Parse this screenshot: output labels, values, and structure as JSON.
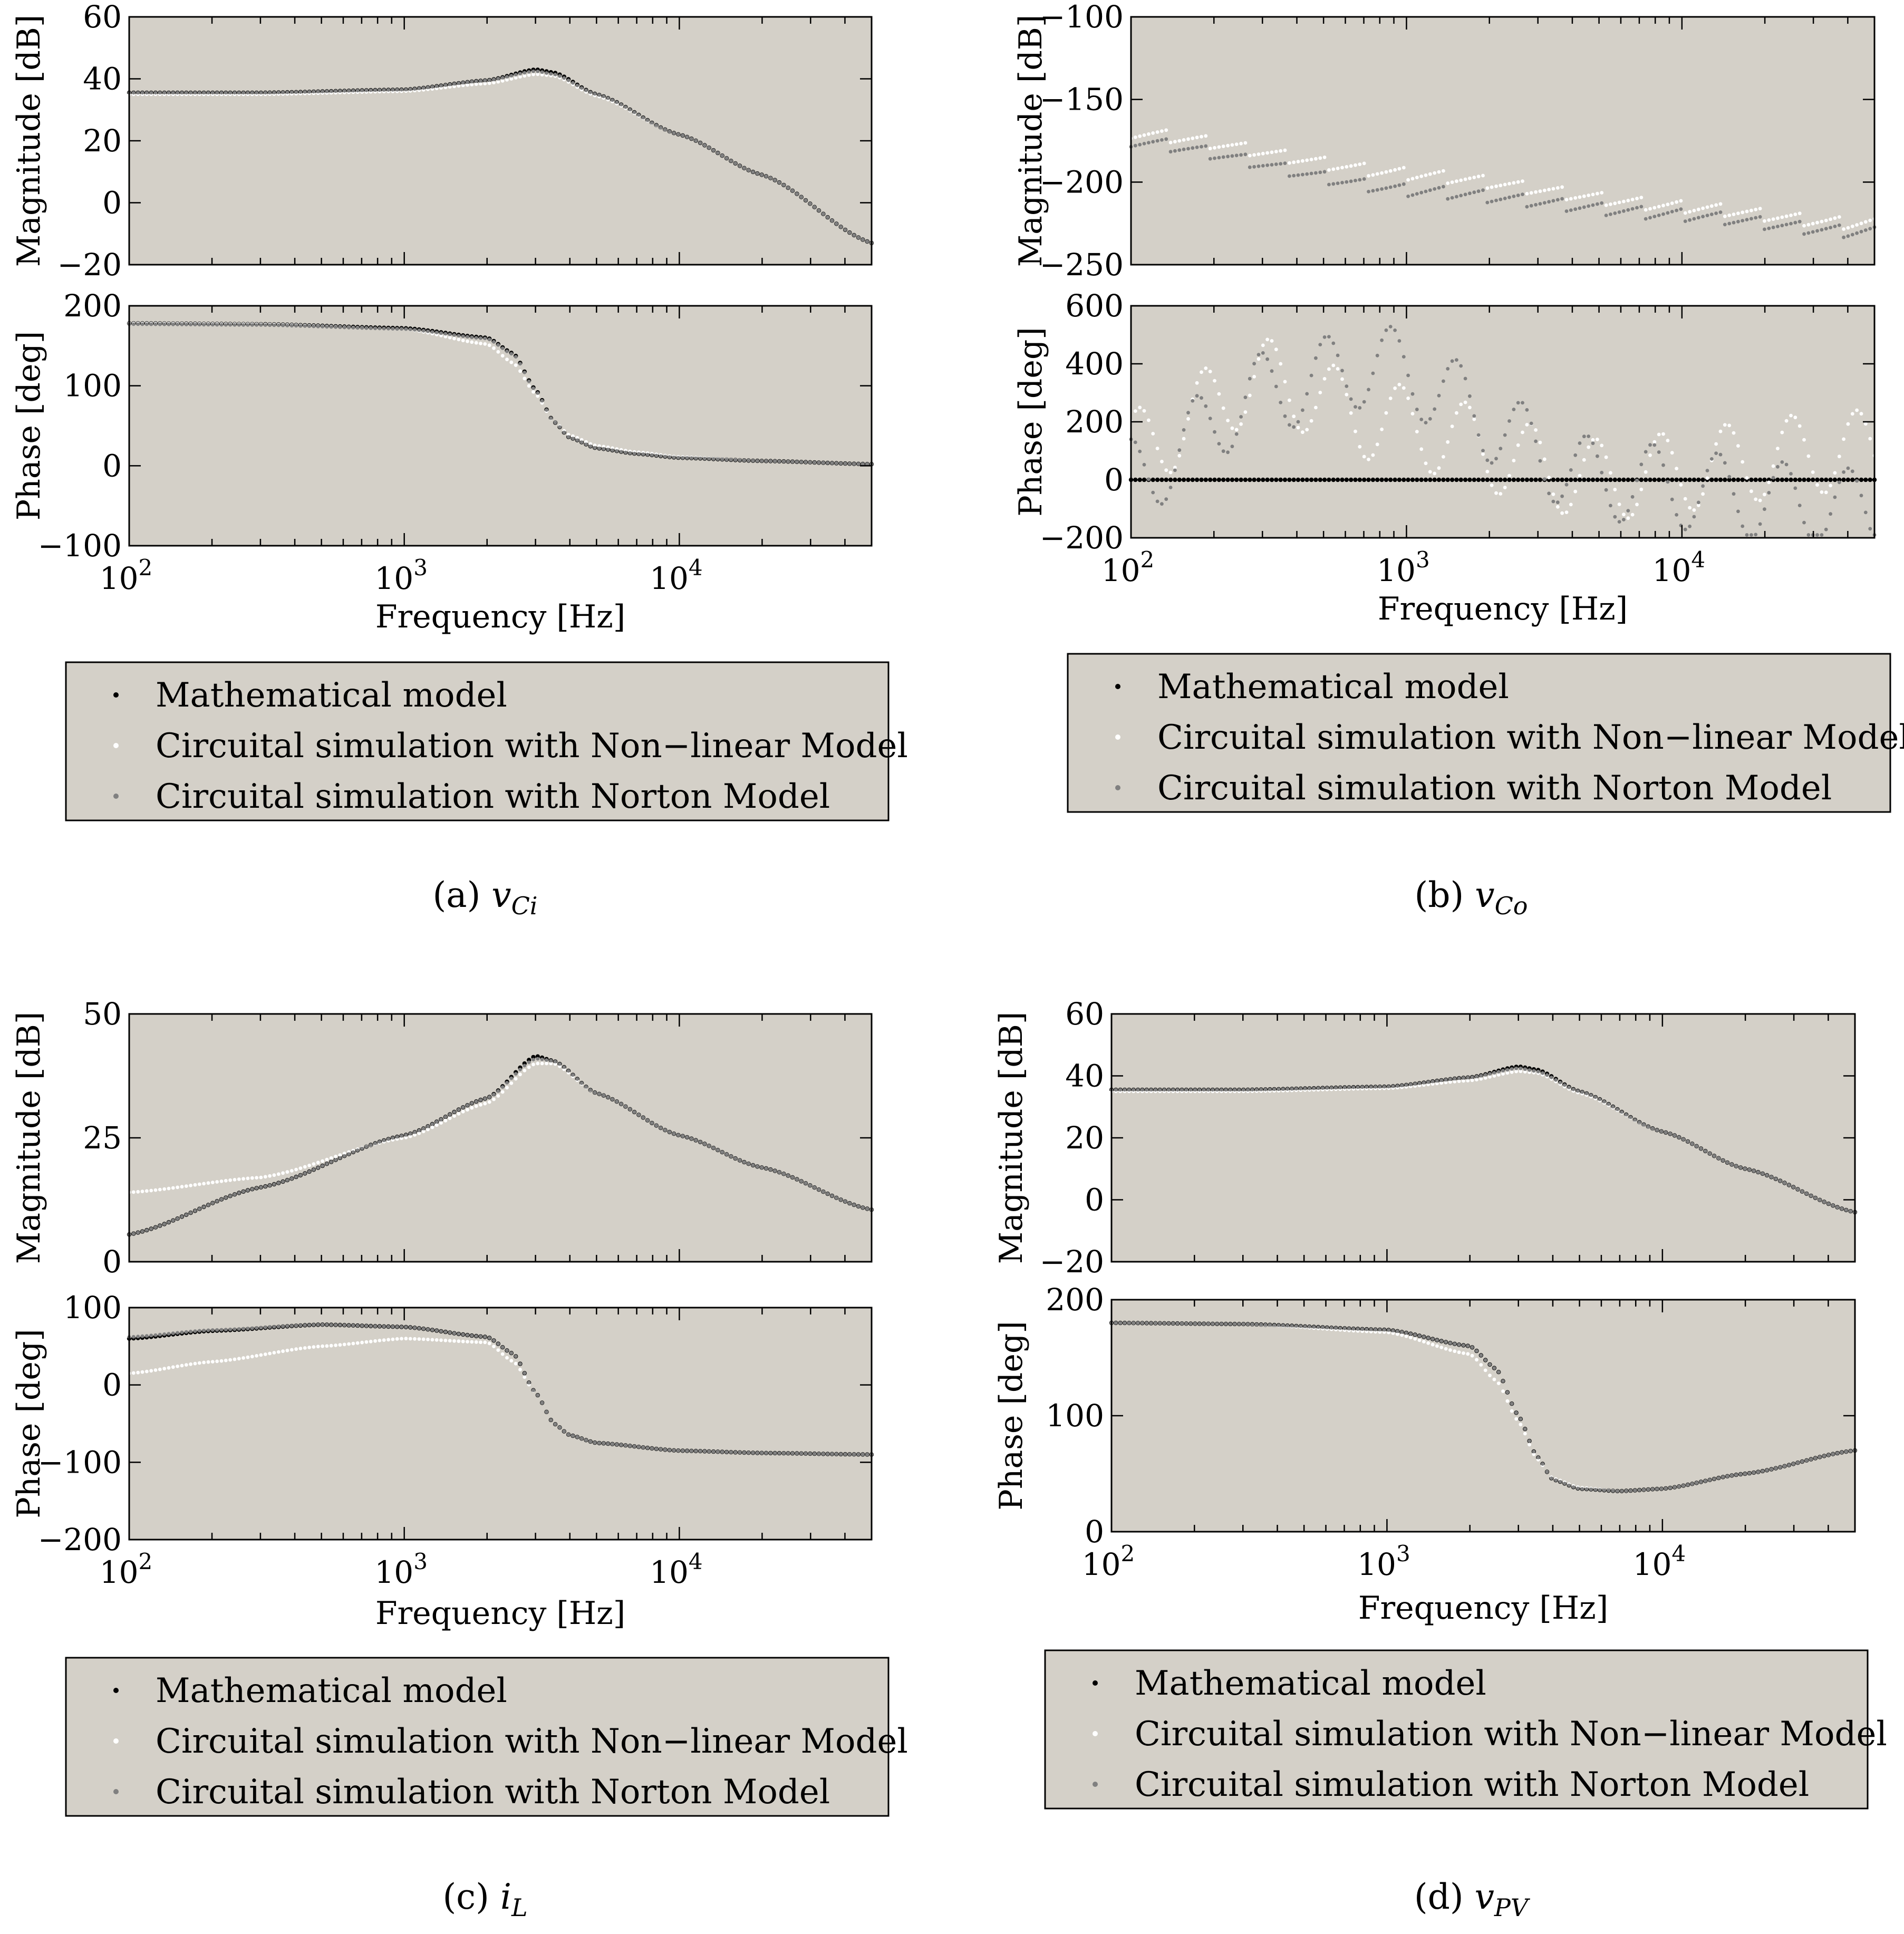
{
  "figure": {
    "background_color": "#d4d0c8",
    "colors": {
      "Mathematical model": "#000000",
      "Circuital simulation with Non−linear Model": "#ffffff",
      "Circuital simulation with Norton Model": "#808080"
    },
    "legend_entries": [
      "Mathematical model",
      "Circuital simulation with Non−linear Model",
      "Circuital simulation with Norton Model"
    ]
  },
  "chart_data": [
    {
      "id": "a",
      "caption_prefix": "(a)",
      "caption_var": "v",
      "caption_sub": "Ci",
      "magnitude": {
        "type": "scatter",
        "xscale": "log",
        "xlim": [
          100,
          50000
        ],
        "ylim": [
          -20,
          60
        ],
        "yticks": [
          "60",
          "40",
          "20",
          "0",
          "−20"
        ],
        "ylabel": "Magnitude [dB]",
        "series": [
          {
            "name": "Mathematical model",
            "x": [
              100,
              300,
              1000,
              2000,
              3000,
              3500,
              5000,
              10000,
              20000,
              50000
            ],
            "y": [
              35.5,
              35.5,
              36.5,
              39.5,
              43,
              42,
              35,
              22,
              9,
              -13
            ]
          },
          {
            "name": "Circuital simulation with Non−linear Model",
            "x": [
              100,
              300,
              1000,
              2000,
              3000,
              3500,
              5000,
              10000,
              20000,
              50000
            ],
            "y": [
              35,
              35,
              36,
              38.5,
              41.5,
              41,
              34.5,
              22,
              9,
              -13
            ]
          },
          {
            "name": "Circuital simulation with Norton Model",
            "x": [
              100,
              300,
              1000,
              2000,
              3000,
              3500,
              5000,
              10000,
              20000,
              50000
            ],
            "y": [
              35.5,
              35.5,
              36.5,
              39.5,
              42.5,
              41.5,
              35,
              22,
              9,
              -13
            ]
          }
        ]
      },
      "phase": {
        "type": "scatter",
        "xscale": "log",
        "xlim": [
          100,
          50000
        ],
        "ylim": [
          -100,
          200
        ],
        "yticks": [
          "200",
          "100",
          "0",
          "−100"
        ],
        "ylabel": "Phase [deg]",
        "xticks": [
          "10",
          "10",
          "10"
        ],
        "xtick_exponents": [
          "2",
          "3",
          "4"
        ],
        "xlabel": "Frequency [Hz]",
        "series": [
          {
            "name": "Mathematical model",
            "x": [
              100,
              300,
              1000,
              2000,
              2500,
              3000,
              3500,
              4000,
              5000,
              7000,
              10000,
              20000,
              50000
            ],
            "y": [
              178,
              177,
              172,
              160,
              140,
              95,
              55,
              35,
              22,
              15,
              10,
              6,
              2
            ]
          },
          {
            "name": "Circuital simulation with Non−linear Model",
            "x": [
              100,
              300,
              1000,
              2000,
              2500,
              3000,
              3500,
              4000,
              5000,
              7000,
              10000,
              20000,
              50000
            ],
            "y": [
              178,
              177,
              171,
              152,
              128,
              90,
              55,
              38,
              25,
              17,
              11,
              6,
              2
            ]
          },
          {
            "name": "Circuital simulation with Norton Model",
            "x": [
              100,
              300,
              1000,
              2000,
              2500,
              3000,
              3500,
              4000,
              5000,
              7000,
              10000,
              20000,
              50000
            ],
            "y": [
              177,
              176,
              171,
              159,
              139,
              94,
              55,
              35,
              22,
              15,
              10,
              6,
              2
            ]
          }
        ]
      }
    },
    {
      "id": "b",
      "caption_prefix": "(b)",
      "caption_var": "v",
      "caption_sub": "Co",
      "magnitude": {
        "type": "scatter",
        "xscale": "log",
        "xlim": [
          100,
          50000
        ],
        "ylim": [
          -250,
          -100
        ],
        "yticks": [
          "−100",
          "−150",
          "−200",
          "−250"
        ],
        "ylabel": "Magnitude [dB]",
        "series": [
          {
            "name": "Circuital simulation with Non−linear Model",
            "x": [
              100,
              1000,
              10000,
              40000
            ],
            "y": [
              -170,
              -195,
              -215,
              -225
            ]
          },
          {
            "name": "Circuital simulation with Norton Model",
            "x": [
              100,
              1000,
              10000,
              40000
            ],
            "y": [
              -175,
              -205,
              -220,
              -230
            ]
          }
        ]
      },
      "phase": {
        "type": "scatter",
        "xscale": "log",
        "xlim": [
          100,
          50000
        ],
        "ylim": [
          -200,
          600
        ],
        "yticks": [
          "600",
          "400",
          "200",
          "0",
          "−200"
        ],
        "ylabel": "Phase [deg]",
        "xticks": [
          "10",
          "10",
          "10"
        ],
        "xtick_exponents": [
          "2",
          "3",
          "4"
        ],
        "xlabel": "Frequency [Hz]",
        "series": [
          {
            "name": "Mathematical model",
            "x": [
              100,
              50000
            ],
            "y": [
              0,
              0
            ]
          },
          {
            "name": "Circuital simulation with Non−linear Model",
            "x": [
              100,
              300,
              800,
              5000,
              40000
            ],
            "y": [
              100,
              350,
              200,
              0,
              100
            ]
          },
          {
            "name": "Circuital simulation with Norton Model",
            "x": [
              100,
              300,
              800,
              5000,
              40000
            ],
            "y": [
              0,
              300,
              400,
              0,
              -100
            ]
          }
        ]
      }
    },
    {
      "id": "c",
      "caption_prefix": "(c)",
      "caption_var": "i",
      "caption_sub": "L",
      "magnitude": {
        "type": "scatter",
        "xscale": "log",
        "xlim": [
          100,
          50000
        ],
        "ylim": [
          0,
          50
        ],
        "yticks": [
          "50",
          "25",
          "0"
        ],
        "ylabel": "Magnitude [dB]",
        "series": [
          {
            "name": "Mathematical model",
            "x": [
              100,
              300,
              1000,
              2000,
              3000,
              3500,
              5000,
              10000,
              20000,
              50000
            ],
            "y": [
              5.5,
              15,
              25.5,
              33,
              41.5,
              40.5,
              34,
              25.5,
              19,
              10.5
            ]
          },
          {
            "name": "Circuital simulation with Non−linear Model",
            "x": [
              100,
              300,
              1000,
              2000,
              3000,
              3500,
              5000,
              10000,
              20000,
              50000
            ],
            "y": [
              14,
              17,
              25,
              32,
              40,
              40,
              34,
              25.5,
              19,
              10.5
            ]
          },
          {
            "name": "Circuital simulation with Norton Model",
            "x": [
              100,
              300,
              1000,
              2000,
              3000,
              3500,
              5000,
              10000,
              20000,
              50000
            ],
            "y": [
              5.5,
              15,
              25.5,
              33,
              41,
              40.5,
              34,
              25.5,
              19,
              10.5
            ]
          }
        ]
      },
      "phase": {
        "type": "scatter",
        "xscale": "log",
        "xlim": [
          100,
          50000
        ],
        "ylim": [
          -200,
          100
        ],
        "yticks": [
          "100",
          "0",
          "−100",
          "−200"
        ],
        "ylabel": "Phase [deg]",
        "xticks": [
          "10",
          "10",
          "10"
        ],
        "xtick_exponents": [
          "2",
          "3",
          "4"
        ],
        "xlabel": "Frequency [Hz]",
        "series": [
          {
            "name": "Mathematical model",
            "x": [
              100,
              200,
              500,
              1000,
              2000,
              2500,
              3000,
              3500,
              4000,
              5000,
              10000,
              20000,
              50000
            ],
            "y": [
              60,
              70,
              78,
              75,
              62,
              40,
              -10,
              -50,
              -65,
              -75,
              -85,
              -88,
              -90
            ]
          },
          {
            "name": "Circuital simulation with Non−linear Model",
            "x": [
              100,
              200,
              500,
              1000,
              2000,
              2500,
              3000,
              3500,
              4000,
              5000,
              10000,
              20000,
              50000
            ],
            "y": [
              15,
              30,
              50,
              60,
              55,
              30,
              -10,
              -50,
              -65,
              -75,
              -85,
              -88,
              -90
            ]
          },
          {
            "name": "Circuital simulation with Norton Model",
            "x": [
              100,
              200,
              500,
              1000,
              2000,
              2500,
              3000,
              3500,
              4000,
              5000,
              10000,
              20000,
              50000
            ],
            "y": [
              62,
              71,
              78,
              75,
              62,
              40,
              -10,
              -50,
              -65,
              -75,
              -85,
              -88,
              -90
            ]
          }
        ]
      }
    },
    {
      "id": "d",
      "caption_prefix": "(d)",
      "caption_var": "v",
      "caption_sub": "PV",
      "magnitude": {
        "type": "scatter",
        "xscale": "log",
        "xlim": [
          100,
          50000
        ],
        "ylim": [
          -20,
          60
        ],
        "yticks": [
          "60",
          "40",
          "20",
          "0",
          "−20"
        ],
        "ylabel": "Magnitude [dB]",
        "series": [
          {
            "name": "Mathematical model",
            "x": [
              100,
              300,
              1000,
              2000,
              3000,
              3500,
              5000,
              10000,
              20000,
              50000
            ],
            "y": [
              35.5,
              35.5,
              36.5,
              39.5,
              43,
              42,
              35,
              22,
              10,
              -4
            ]
          },
          {
            "name": "Circuital simulation with Non−linear Model",
            "x": [
              100,
              300,
              1000,
              2000,
              3000,
              3500,
              5000,
              10000,
              20000,
              50000
            ],
            "y": [
              35,
              35,
              36,
              38.5,
              41.5,
              41,
              34.5,
              22,
              10,
              -4
            ]
          },
          {
            "name": "Circuital simulation with Norton Model",
            "x": [
              100,
              300,
              1000,
              2000,
              3000,
              3500,
              5000,
              10000,
              20000,
              50000
            ],
            "y": [
              35.5,
              35.5,
              36.5,
              39.5,
              42.5,
              41.5,
              35,
              22,
              10,
              -4
            ]
          }
        ]
      },
      "phase": {
        "type": "scatter",
        "xscale": "log",
        "xlim": [
          100,
          50000
        ],
        "ylim": [
          0,
          200
        ],
        "yticks": [
          "200",
          "100",
          "0"
        ],
        "ylabel": "Phase [deg]",
        "xticks": [
          "10",
          "10",
          "10"
        ],
        "xtick_exponents": [
          "2",
          "3",
          "4"
        ],
        "xlabel": "Frequency [Hz]",
        "series": [
          {
            "name": "Mathematical model",
            "x": [
              100,
              300,
              1000,
              2000,
              2500,
              3000,
              3500,
              4000,
              5000,
              7000,
              10000,
              20000,
              50000
            ],
            "y": [
              180,
              179,
              174,
              160,
              140,
              100,
              65,
              45,
              37,
              35,
              37,
              50,
              70
            ]
          },
          {
            "name": "Circuital simulation with Non−linear Model",
            "x": [
              100,
              300,
              1000,
              2000,
              2500,
              3000,
              3500,
              4000,
              5000,
              7000,
              10000,
              20000,
              50000
            ],
            "y": [
              180,
              179,
              172,
              153,
              130,
              95,
              63,
              46,
              38,
              35,
              37,
              50,
              70
            ]
          },
          {
            "name": "Circuital simulation with Norton Model",
            "x": [
              100,
              300,
              1000,
              2000,
              2500,
              3000,
              3500,
              4000,
              5000,
              7000,
              10000,
              20000,
              50000
            ],
            "y": [
              180,
              179,
              174,
              160,
              140,
              100,
              65,
              45,
              37,
              35,
              37,
              50,
              70
            ]
          }
        ]
      }
    }
  ]
}
